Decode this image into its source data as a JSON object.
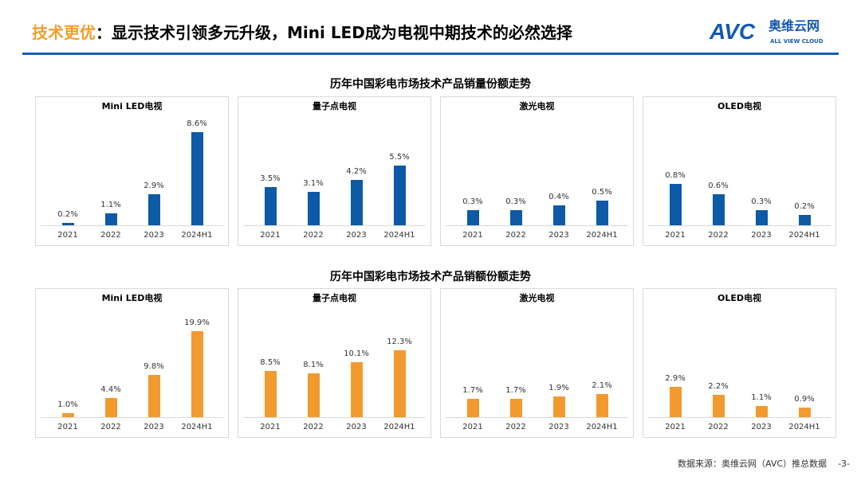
{
  "header": {
    "title_highlight": "技术更优",
    "title_rest": "：显示技术引领多元升级，Mini LED成为电视中期技术的必然选择",
    "logo_text": "AVC",
    "logo_cn": "奥维云网",
    "logo_en": "ALL VIEW CLOUD"
  },
  "sections": [
    "历年中国彩电市场技术产品销量份额走势",
    "历年中国彩电市场技术产品销额份额走势"
  ],
  "colors": {
    "volume": "#0d5aa7",
    "value": "#f29a2e",
    "accent": "#f0a030"
  },
  "chart_data": [
    {
      "type": "bar",
      "title": "Mini LED电视",
      "categories": [
        "2021",
        "2022",
        "2023",
        "2024H1"
      ],
      "values": [
        0.2,
        1.1,
        2.9,
        8.6
      ],
      "labels": [
        "0.2%",
        "1.1%",
        "2.9%",
        "8.6%"
      ],
      "ylim": [
        0,
        10
      ],
      "grid": false
    },
    {
      "type": "bar",
      "title": "量子点电视",
      "categories": [
        "2021",
        "2022",
        "2023",
        "2024H1"
      ],
      "values": [
        3.5,
        3.1,
        4.2,
        5.5
      ],
      "labels": [
        "3.5%",
        "3.1%",
        "4.2%",
        "5.5%"
      ],
      "ylim": [
        0,
        10
      ],
      "grid": false
    },
    {
      "type": "bar",
      "title": "激光电视",
      "categories": [
        "2021",
        "2022",
        "2023",
        "2024H1"
      ],
      "values": [
        0.3,
        0.3,
        0.4,
        0.5
      ],
      "labels": [
        "0.3%",
        "0.3%",
        "0.4%",
        "0.5%"
      ],
      "ylim": [
        0,
        2.2
      ],
      "grid": false
    },
    {
      "type": "bar",
      "title": "OLED电视",
      "categories": [
        "2021",
        "2022",
        "2023",
        "2024H1"
      ],
      "values": [
        0.8,
        0.6,
        0.3,
        0.2
      ],
      "labels": [
        "0.8%",
        "0.6%",
        "0.3%",
        "0.2%"
      ],
      "ylim": [
        0,
        2.1
      ],
      "grid": false
    },
    {
      "type": "bar",
      "title": "Mini LED电视",
      "categories": [
        "2021",
        "2022",
        "2023",
        "2024H1"
      ],
      "values": [
        1.0,
        4.4,
        9.8,
        19.9
      ],
      "labels": [
        "1.0%",
        "4.4%",
        "9.8%",
        "19.9%"
      ],
      "ylim": [
        0,
        25
      ],
      "grid": false
    },
    {
      "type": "bar",
      "title": "量子点电视",
      "categories": [
        "2021",
        "2022",
        "2023",
        "2024H1"
      ],
      "values": [
        8.5,
        8.1,
        10.1,
        12.3
      ],
      "labels": [
        "8.5%",
        "8.1%",
        "10.1%",
        "12.3%"
      ],
      "ylim": [
        0,
        20
      ],
      "grid": false
    },
    {
      "type": "bar",
      "title": "激光电视",
      "categories": [
        "2021",
        "2022",
        "2023",
        "2024H1"
      ],
      "values": [
        1.7,
        1.7,
        1.9,
        2.1
      ],
      "labels": [
        "1.7%",
        "1.7%",
        "1.9%",
        "2.1%"
      ],
      "ylim": [
        0,
        10
      ],
      "grid": false
    },
    {
      "type": "bar",
      "title": "OLED电视",
      "categories": [
        "2021",
        "2022",
        "2023",
        "2024H1"
      ],
      "values": [
        2.9,
        2.2,
        1.1,
        0.9
      ],
      "labels": [
        "2.9%",
        "2.2%",
        "1.1%",
        "0.9%"
      ],
      "ylim": [
        0,
        10.5
      ],
      "grid": false
    }
  ],
  "footer": {
    "source": "数据来源：奥维云网（AVC）推总数据",
    "page": "-3-"
  }
}
